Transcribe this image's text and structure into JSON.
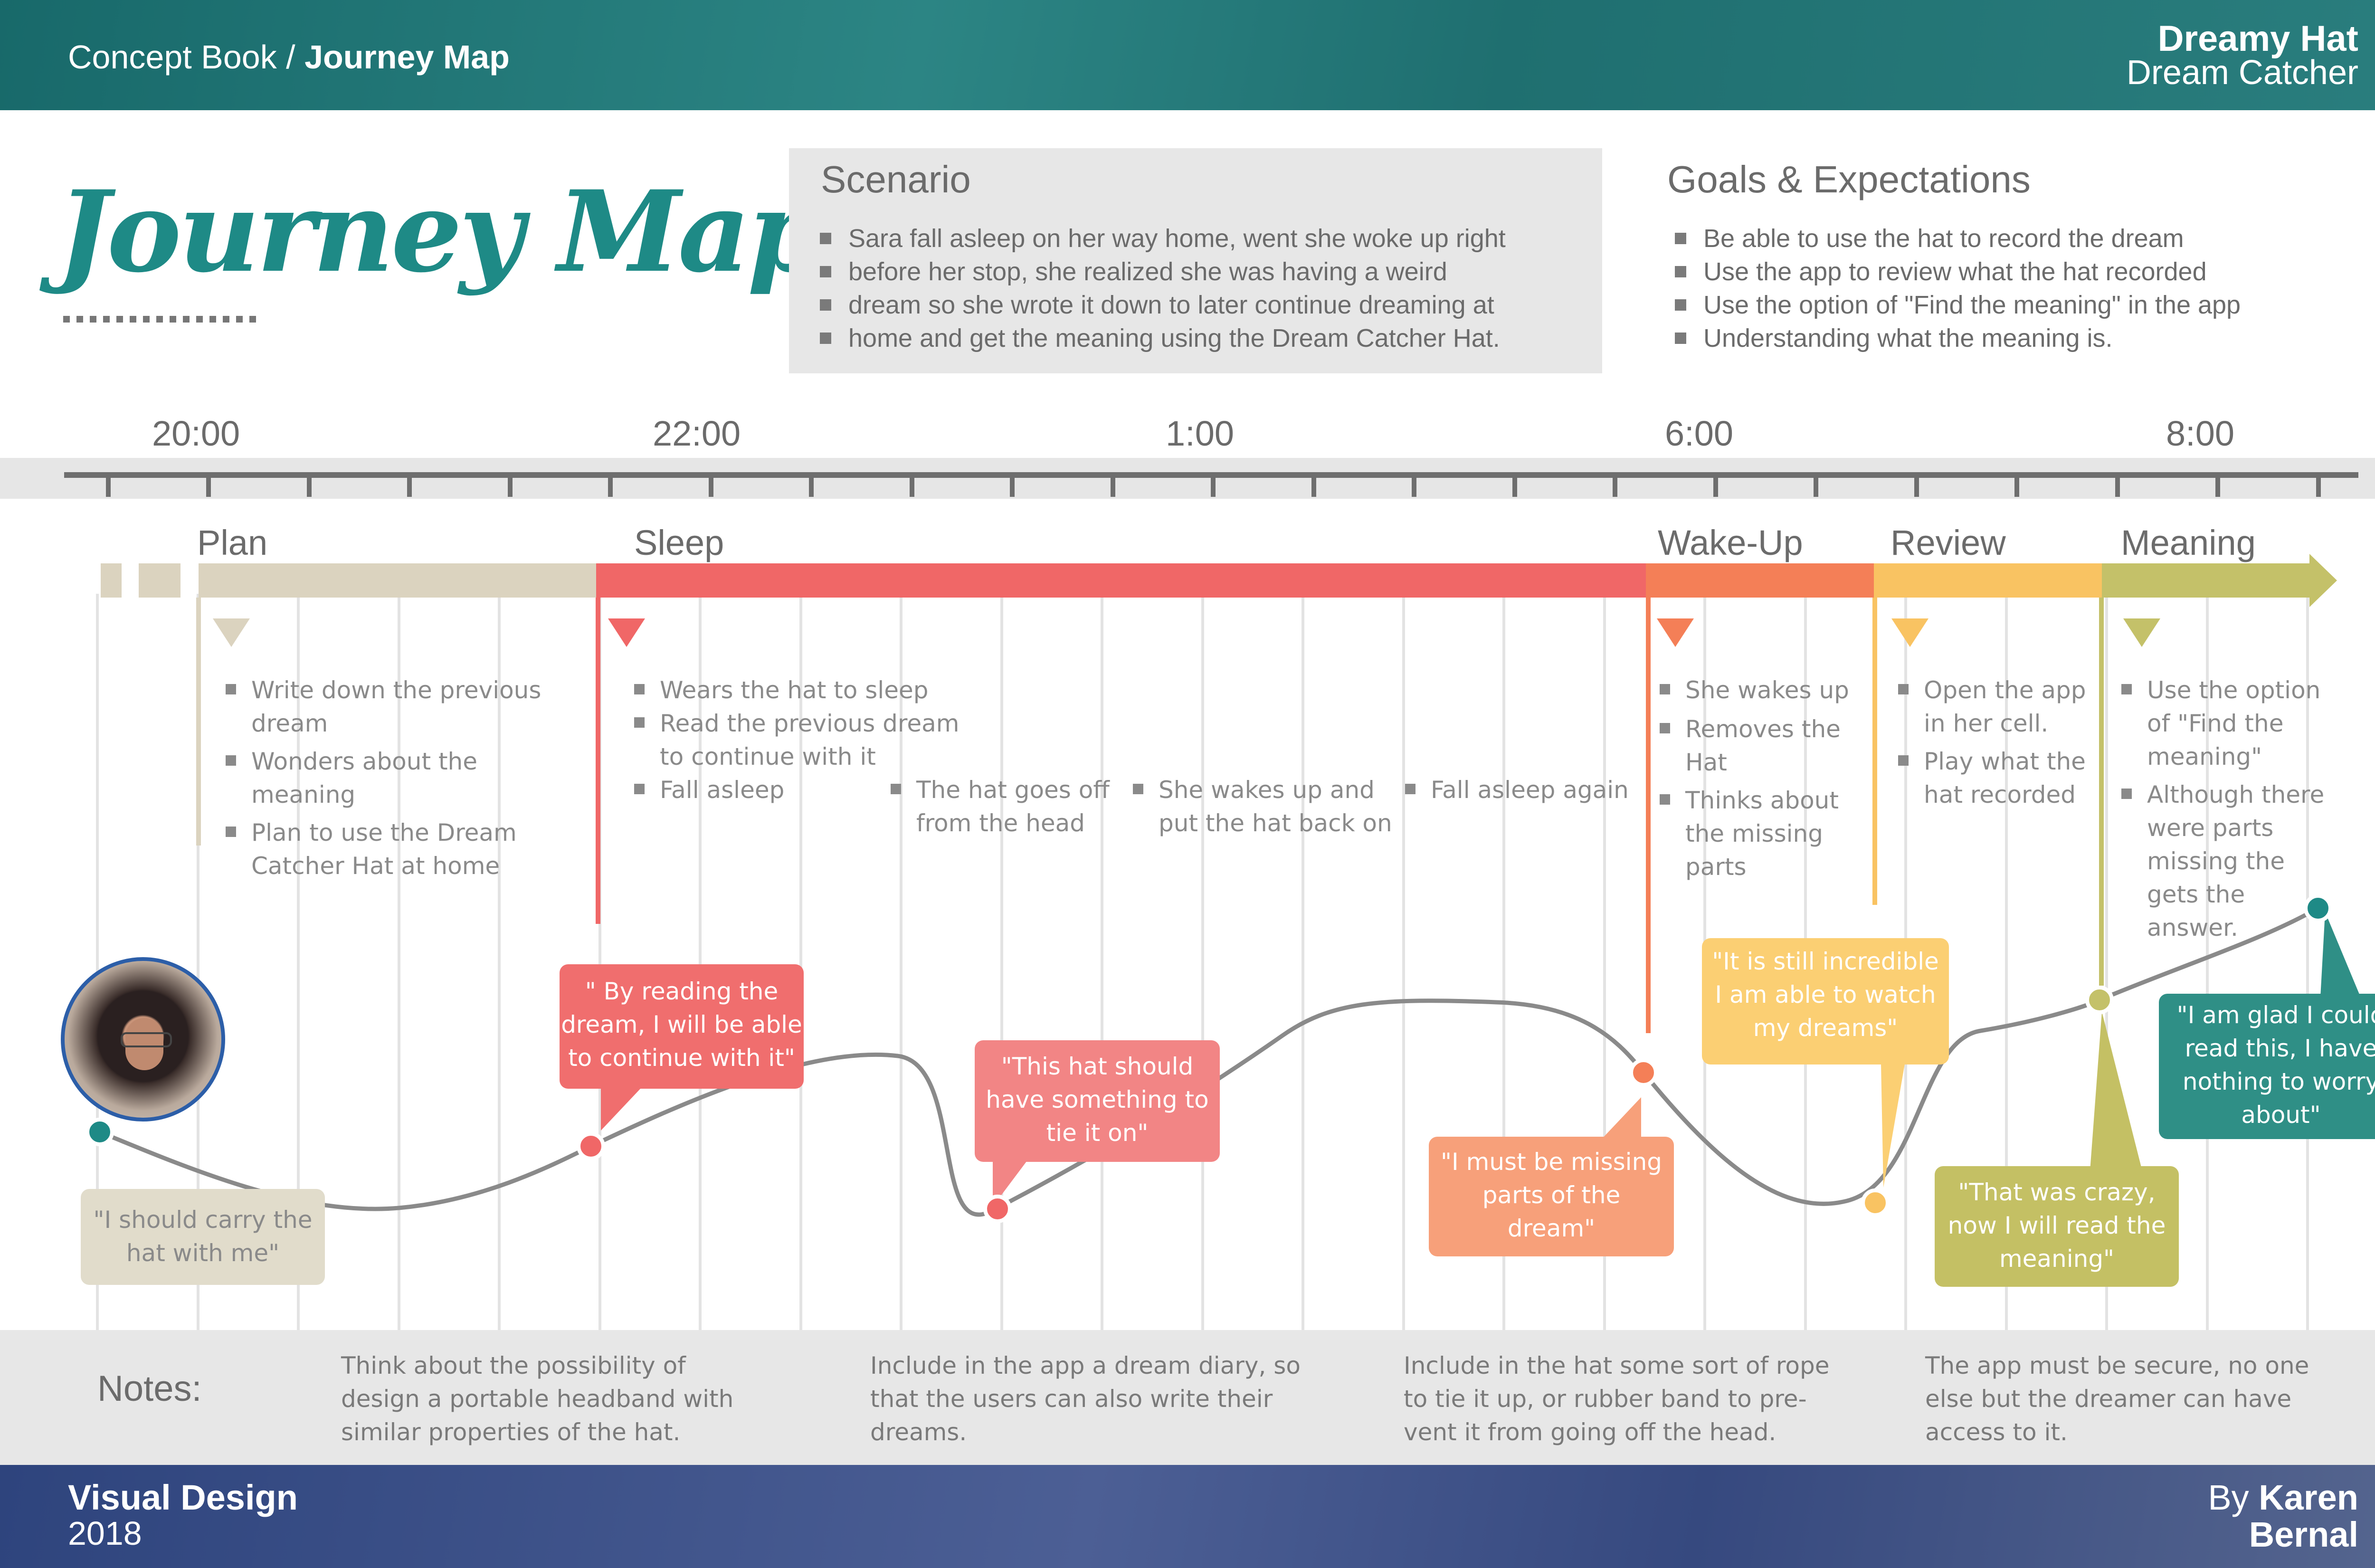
{
  "header": {
    "breadcrumb_prefix": "Concept Book /",
    "breadcrumb_current": "Journey Map",
    "brand_title": "Dreamy Hat",
    "brand_subtitle": "Dream Catcher"
  },
  "page_title": "Journey Map",
  "scenario": {
    "heading": "Scenario",
    "lines": [
      "Sara fall asleep on her way home, went she woke up right",
      "before her stop, she realized she was having a weird",
      "dream so she wrote it down to later continue dreaming at",
      "home and get the meaning using the Dream Catcher Hat."
    ]
  },
  "goals": {
    "heading": "Goals & Expectations",
    "items": [
      "Be able to use the hat to record the dream",
      "Use the app to review what the hat recorded",
      "Use the option of \"Find the meaning\" in the app",
      "Understanding what the meaning is."
    ]
  },
  "timeline": {
    "times": [
      "20:00",
      "22:00",
      "1:00",
      "6:00",
      "8:00"
    ]
  },
  "phases": [
    {
      "name": "Plan",
      "color": "#dbd3bf"
    },
    {
      "name": "Sleep",
      "color": "#f06767"
    },
    {
      "name": "Wake-Up",
      "color": "#f47f57"
    },
    {
      "name": "Review",
      "color": "#f9c362"
    },
    {
      "name": "Meaning",
      "color": "#c4c169"
    }
  ],
  "actions": {
    "plan": [
      [
        "Write down the previous",
        "dream"
      ],
      [
        "Wonders about the",
        "meaning"
      ],
      [
        "Plan to use the Dream",
        "Catcher Hat at home"
      ]
    ],
    "sleep": [
      [
        "Wears the hat to sleep"
      ],
      [
        "Read the previous dream",
        "to continue with it"
      ],
      [
        "Fall asleep"
      ]
    ],
    "sleep_2": [
      [
        "The hat goes off",
        "from the head"
      ]
    ],
    "sleep_3": [
      [
        "She wakes up and",
        "put the hat back on"
      ]
    ],
    "sleep_4": [
      [
        "Fall asleep again"
      ]
    ],
    "wakeup": [
      [
        "She wakes up"
      ],
      [
        "Removes the",
        "Hat"
      ],
      [
        "Thinks about",
        "the missing",
        "parts"
      ]
    ],
    "review": [
      [
        "Open the app",
        "in her cell."
      ],
      [
        "Play what the",
        "hat recorded"
      ]
    ],
    "meaning": [
      [
        "Use the option",
        "of \"Find the",
        "meaning\""
      ],
      [
        "Although there",
        "were parts",
        "missing the",
        "gets the",
        "answer."
      ]
    ]
  },
  "quotes": [
    {
      "lines": [
        "\"I should carry the",
        "hat with me\""
      ],
      "color": "#e1dccb"
    },
    {
      "lines": [
        "\" By reading the",
        "dream, I will be able",
        "to continue with it\""
      ],
      "color": "#f06e6e"
    },
    {
      "lines": [
        "\"This hat should",
        "have something to",
        "tie it on\""
      ],
      "color": "#f28585"
    },
    {
      "lines": [
        "\"I must be missing",
        "parts of the",
        "dream\""
      ],
      "color": "#f7a07a"
    },
    {
      "lines": [
        "\"It is still incredible",
        "I am able to watch",
        "my dreams\""
      ],
      "color": "#fbcf73"
    },
    {
      "lines": [
        "\"That was crazy,",
        "now I will read the",
        "meaning\""
      ],
      "color": "#c4c064"
    },
    {
      "lines": [
        "\"I am glad I could",
        "read this, I have",
        "nothing to worry",
        "about\""
      ],
      "color": "#2f8f86"
    }
  ],
  "notes": {
    "label": "Notes:",
    "items": [
      [
        "Think about the possibility of",
        "design a portable headband with",
        "similar properties of the hat."
      ],
      [
        "Include in the app a dream diary, so",
        "that the users can also write their",
        "dreams."
      ],
      [
        "Include in the hat some sort of rope",
        "to tie it up, or rubber band to pre-",
        "vent it from going off the head."
      ],
      [
        "The app must be secure, no one",
        "else but the dreamer can have",
        "access to it."
      ]
    ]
  },
  "footer": {
    "course": "Visual Design",
    "year": "2018",
    "by_prefix": "By",
    "author_first": "Karen",
    "author_last": "Bernal"
  },
  "colors": {
    "teal": "#1e8a86",
    "header_bg": "#1f6f70",
    "footer_bg": "#3a4d84"
  }
}
